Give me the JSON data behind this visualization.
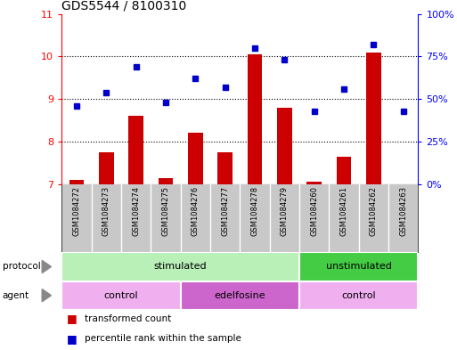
{
  "title": "GDS5544 / 8100310",
  "samples": [
    "GSM1084272",
    "GSM1084273",
    "GSM1084274",
    "GSM1084275",
    "GSM1084276",
    "GSM1084277",
    "GSM1084278",
    "GSM1084279",
    "GSM1084260",
    "GSM1084261",
    "GSM1084262",
    "GSM1084263"
  ],
  "red_values": [
    7.1,
    7.75,
    8.6,
    7.15,
    8.2,
    7.75,
    10.05,
    8.8,
    7.05,
    7.65,
    10.1,
    7.0
  ],
  "blue_values": [
    46,
    54,
    69,
    48,
    62,
    57,
    80,
    73,
    43,
    56,
    82,
    43
  ],
  "ylim_left": [
    7,
    11
  ],
  "ylim_right": [
    0,
    100
  ],
  "yticks_left": [
    7,
    8,
    9,
    10,
    11
  ],
  "yticks_right": [
    0,
    25,
    50,
    75,
    100
  ],
  "ytick_labels_right": [
    "0%",
    "25%",
    "50%",
    "75%",
    "100%"
  ],
  "bar_color": "#cc0000",
  "dot_color": "#0000cc",
  "bar_bottom": 7.0,
  "protocol_groups": [
    {
      "label": "stimulated",
      "start": 0,
      "end": 8,
      "color": "#b8f0b8"
    },
    {
      "label": "unstimulated",
      "start": 8,
      "end": 12,
      "color": "#44cc44"
    }
  ],
  "agent_groups": [
    {
      "label": "control",
      "start": 0,
      "end": 4,
      "color": "#f0b0f0"
    },
    {
      "label": "edelfosine",
      "start": 4,
      "end": 8,
      "color": "#cc66cc"
    },
    {
      "label": "control",
      "start": 8,
      "end": 12,
      "color": "#f0b0f0"
    }
  ],
  "legend_red_label": "transformed count",
  "legend_blue_label": "percentile rank within the sample",
  "bg_color": "#ffffff",
  "xtick_bg": "#c8c8c8",
  "title_fontsize": 10,
  "tick_fontsize": 8,
  "label_fontsize": 8,
  "bar_width": 0.5
}
